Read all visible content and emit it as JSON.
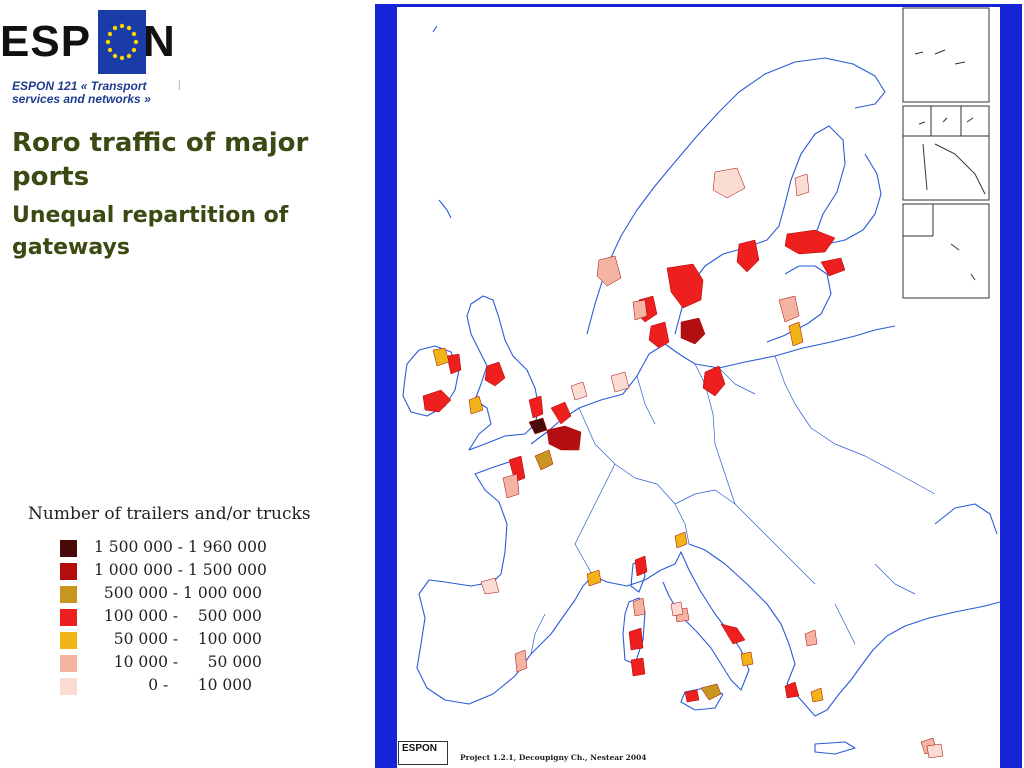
{
  "logo": {
    "left": "ESP",
    "right": "N"
  },
  "subtitle": "ESPON 121 « Transport services and networks »",
  "title": "Roro traffic of major ports",
  "subheading": "Unequal repartition of gateways",
  "legend": {
    "title": "Number of trailers and/or trucks",
    "items": [
      {
        "label": "1 500 000 - 1 960 000",
        "color": "#4a0a0a"
      },
      {
        "label": "1 000 000 - 1 500 000",
        "color": "#b30f10"
      },
      {
        "label": "  500 000 - 1 000 000",
        "color": "#c8961e"
      },
      {
        "label": "  100 000 -    500 000",
        "color": "#ee1f1f"
      },
      {
        "label": "    50 000 -    100 000",
        "color": "#f0b418"
      },
      {
        "label": "    10 000 -      50 000",
        "color": "#f4b4a2"
      },
      {
        "label": "           0 -      10 000",
        "color": "#fadcd2"
      }
    ]
  },
  "map": {
    "frame_color": "#1524d6",
    "coast_color": "#2a5bd7",
    "credit": "Project 1.2.1, Decoupigny Ch., Nestear 2004",
    "mini_logo": "ESPON"
  }
}
